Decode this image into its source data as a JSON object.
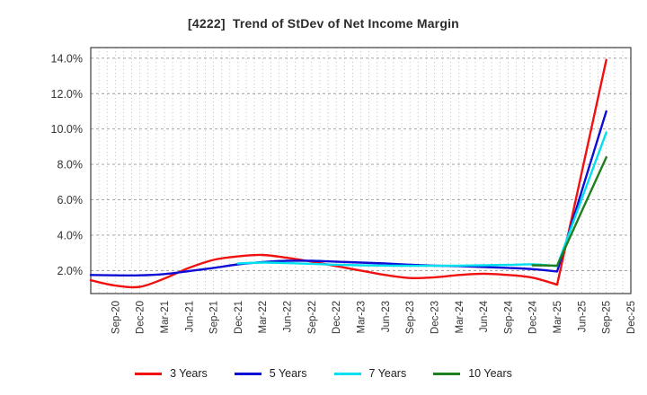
{
  "chart_data": {
    "type": "line",
    "title": "[4222]  Trend of StDev of Net Income Margin",
    "xlabel": "",
    "ylabel": "",
    "grid": "on",
    "legend_position": "bottom-center",
    "ylim": [
      0.7,
      14.6
    ],
    "y_tick_values": [
      2,
      4,
      6,
      8,
      10,
      12,
      14
    ],
    "y_tick_labels": [
      "2.0%",
      "4.0%",
      "6.0%",
      "8.0%",
      "10.0%",
      "12.0%",
      "14.0%"
    ],
    "x_tick_labels": [
      "Sep-20",
      "Dec-20",
      "Mar-21",
      "Jun-21",
      "Sep-21",
      "Dec-21",
      "Mar-22",
      "Jun-22",
      "Sep-22",
      "Dec-22",
      "Mar-23",
      "Jun-23",
      "Sep-23",
      "Dec-23",
      "Mar-24",
      "Jun-24",
      "Sep-24",
      "Dec-24",
      "Mar-25",
      "Jun-25",
      "Sep-25",
      "Dec-25"
    ],
    "x_axis_note": "x positions are months after Jun-20; axis spans 0..66 months (Jun-20..Dec-25); labeled ticks quarterly starting at month 3 (Sep-20); data points quarterly; all series end at Sep-25 (month 63); spike kink at Mar-25 (month 57)",
    "months_total": 66,
    "first_tick_month": 3,
    "tick_step_months": 3,
    "kink_month": 57,
    "series": [
      {
        "name": "3 Years",
        "color": "#f01010",
        "start_month": 0,
        "step_months": 3,
        "values": [
          1.45,
          1.15,
          1.08,
          1.55,
          2.15,
          2.6,
          2.8,
          2.88,
          2.72,
          2.5,
          2.25,
          2.0,
          1.75,
          1.58,
          1.62,
          1.75,
          1.82,
          1.75,
          1.6,
          1.2,
          7.55,
          13.9
        ]
      },
      {
        "name": "5 Years",
        "color": "#0d0dd6",
        "start_month": 0,
        "step_months": 3,
        "values": [
          1.75,
          1.73,
          1.73,
          1.8,
          1.97,
          2.15,
          2.35,
          2.48,
          2.55,
          2.55,
          2.5,
          2.45,
          2.4,
          2.33,
          2.28,
          2.25,
          2.2,
          2.15,
          2.08,
          1.95,
          6.5,
          11.0
        ]
      },
      {
        "name": "7 Years",
        "color": "#00e0ee",
        "start_month": 18,
        "step_months": 3,
        "values": [
          2.4,
          2.45,
          2.42,
          2.38,
          2.33,
          2.3,
          2.28,
          2.27,
          2.27,
          2.28,
          2.3,
          2.32,
          2.35,
          2.25,
          6.05,
          9.8
        ]
      },
      {
        "name": "10 Years",
        "color": "#1d7f1d",
        "start_month": 54,
        "step_months": 3,
        "values": [
          2.3,
          2.28,
          5.35,
          8.4
        ]
      }
    ]
  }
}
